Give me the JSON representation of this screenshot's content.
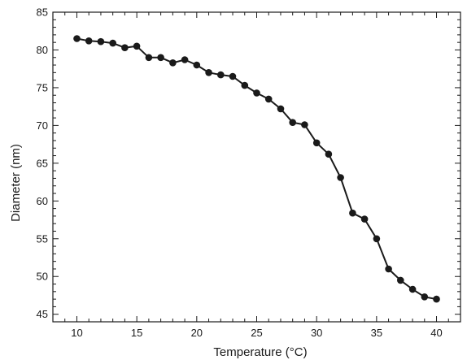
{
  "chart_data": {
    "type": "line",
    "xlabel": "Temperature (°C)",
    "ylabel": "Diameter (nm)",
    "xlim": [
      8,
      42
    ],
    "ylim": [
      44,
      85
    ],
    "xticks": [
      10,
      15,
      20,
      25,
      30,
      35,
      40
    ],
    "yticks": [
      45,
      50,
      55,
      60,
      65,
      70,
      75,
      80,
      85
    ],
    "x_minor_step": 1,
    "y_minor_step": 1,
    "grid": false,
    "series": [
      {
        "color": "#1a1a1a",
        "marker": "circle",
        "x": [
          10,
          11,
          12,
          13,
          14,
          15,
          16,
          17,
          18,
          19,
          20,
          21,
          22,
          23,
          24,
          25,
          26,
          27,
          28,
          29,
          30,
          31,
          32,
          33,
          34,
          35,
          36,
          37,
          38,
          39,
          40
        ],
        "y": [
          81.5,
          81.2,
          81.1,
          80.9,
          80.3,
          80.5,
          79.0,
          79.0,
          78.3,
          78.7,
          78.0,
          77.0,
          76.7,
          76.5,
          75.3,
          74.3,
          73.5,
          72.2,
          70.4,
          70.1,
          67.7,
          66.2,
          63.1,
          58.4,
          57.6,
          55.0,
          51.0,
          49.5,
          48.3,
          47.3,
          47.0
        ]
      }
    ]
  }
}
